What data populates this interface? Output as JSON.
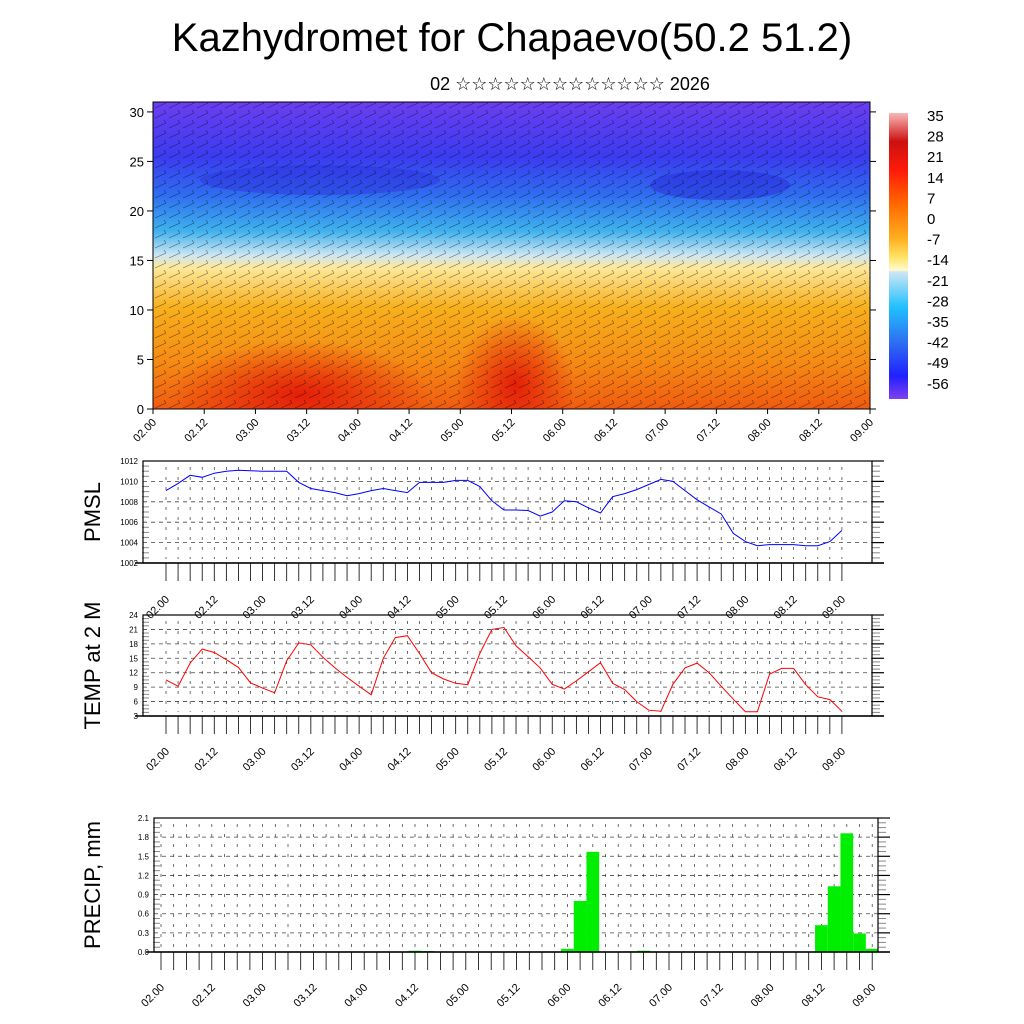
{
  "title": "Kazhydromet for Chapaevo(50.2 51.2)",
  "subtitle": "02 ☆☆☆☆☆☆☆☆☆☆☆☆☆ 2026",
  "colors": {
    "pmsl": "#0000ff",
    "temp": "#ff0000",
    "precip": "#00ee00"
  },
  "x_tick_labels": [
    "02.00",
    "02.12",
    "03.00",
    "03.12",
    "04.00",
    "04.12",
    "05.00",
    "05.12",
    "06.00",
    "06.12",
    "07.00",
    "07.12",
    "08.00",
    "08.12",
    "09.00"
  ],
  "chart_data": [
    {
      "type": "heatmap",
      "name": "cross-section",
      "ylabel": "",
      "ylim": [
        0,
        31
      ],
      "y_ticks": [
        "0",
        "5",
        "10",
        "15",
        "20",
        "25",
        "30"
      ],
      "colorbar_labels": [
        "35",
        "28",
        "21",
        "14",
        "7",
        "0",
        "-7",
        "-14",
        "-21",
        "-28",
        "-35",
        "-42",
        "-49",
        "-56"
      ]
    },
    {
      "type": "line",
      "name": "pmsl",
      "ylabel": "PMSL",
      "ylim": [
        1002,
        1012
      ],
      "y_ticks": [
        "1002",
        "1004",
        "1006",
        "1008",
        "1010",
        "1012"
      ],
      "step_hours": 3,
      "values": [
        1009.1,
        1009.8,
        1010.6,
        1010.4,
        1010.8,
        1011.0,
        1011.1,
        1011.05,
        1011.0,
        1011.0,
        1011.0,
        1009.9,
        1009.3,
        1009.1,
        1008.9,
        1008.6,
        1008.8,
        1009.1,
        1009.3,
        1009.1,
        1008.9,
        1009.9,
        1009.9,
        1009.9,
        1010.1,
        1010.1,
        1009.5,
        1008.1,
        1007.2,
        1007.2,
        1007.15,
        1006.6,
        1007.0,
        1008.1,
        1008.0,
        1007.4,
        1006.9,
        1008.5,
        1008.8,
        1009.2,
        1009.7,
        1010.2,
        1010.0,
        1009.1,
        1008.2,
        1007.5,
        1006.8,
        1004.9,
        1004.1,
        1003.7,
        1003.8,
        1003.8,
        1003.8,
        1003.7,
        1003.7,
        1004.1,
        1005.2
      ]
    },
    {
      "type": "line",
      "name": "temp",
      "ylabel": "TEMP at 2 M",
      "ylim": [
        3,
        24
      ],
      "y_ticks": [
        "3",
        "6",
        "9",
        "12",
        "15",
        "18",
        "21",
        "24"
      ],
      "step_hours": 3,
      "values": [
        10.5,
        9.2,
        14.0,
        16.9,
        16.2,
        14.7,
        13.1,
        9.9,
        8.8,
        7.8,
        14.5,
        18.2,
        17.8,
        15.2,
        13.0,
        11.0,
        9.2,
        7.4,
        15.0,
        19.3,
        19.7,
        16.0,
        12.0,
        10.7,
        9.8,
        9.5,
        16.0,
        21.0,
        21.4,
        17.6,
        15.3,
        13.0,
        9.6,
        8.6,
        10.3,
        12.2,
        14.1,
        9.8,
        8.5,
        6.0,
        4.2,
        4.0,
        9.6,
        13.0,
        14.0,
        12.0,
        9.2,
        6.5,
        3.9,
        3.9,
        11.7,
        12.9,
        12.9,
        9.5,
        7.0,
        6.4,
        4.0
      ]
    },
    {
      "type": "bar",
      "name": "precip",
      "ylabel": "PRECIP, mm",
      "ylim": [
        0,
        2.1
      ],
      "y_ticks": [
        "0.0",
        "0.3",
        "0.6",
        "0.9",
        "1.2",
        "1.5",
        "1.8",
        "2.1"
      ],
      "step_hours": 3,
      "values": [
        0,
        0,
        0,
        0,
        0,
        0,
        0,
        0,
        0,
        0,
        0,
        0,
        0,
        0,
        0,
        0,
        0,
        0,
        0,
        0,
        0.02,
        0.015,
        0,
        0,
        0,
        0,
        0,
        0,
        0,
        0,
        0,
        0,
        0.05,
        0.8,
        1.57,
        0,
        0,
        0.01,
        0.02,
        0,
        0,
        0,
        0,
        0,
        0,
        0,
        0,
        0,
        0,
        0,
        0,
        0,
        0.42,
        1.03,
        1.86,
        0.29,
        0.05
      ]
    }
  ]
}
